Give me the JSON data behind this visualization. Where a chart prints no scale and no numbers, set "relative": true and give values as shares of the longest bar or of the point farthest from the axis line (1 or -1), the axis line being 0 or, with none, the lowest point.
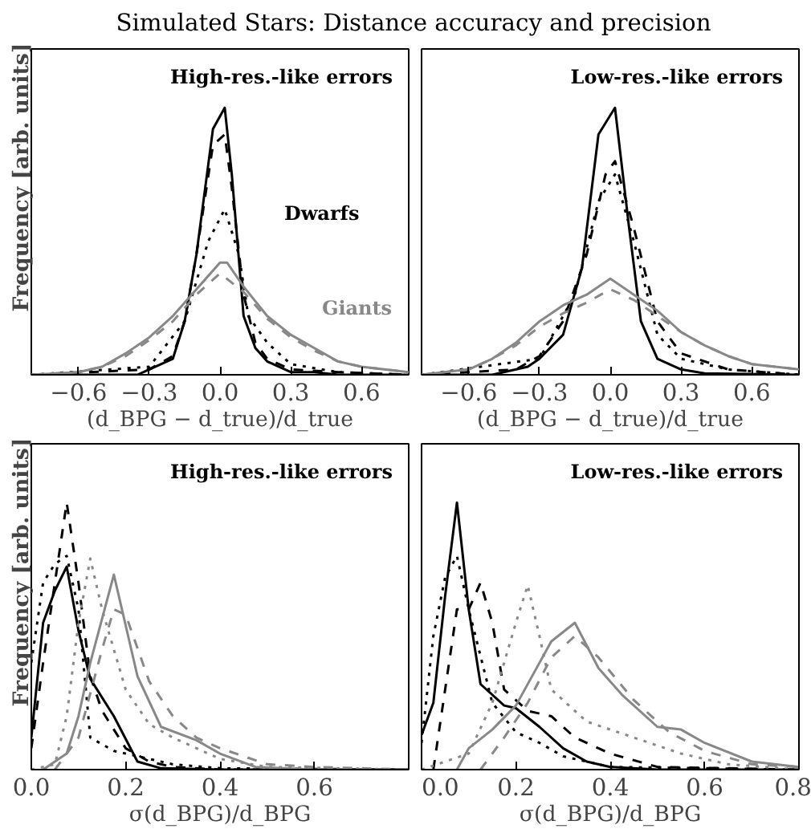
{
  "chart_data": [
    {
      "type": "line",
      "title": "Simulated Stars: Distance accuracy and precision",
      "relative": true,
      "xlabel": "(d_BPG − d_true)/d_true",
      "ylabel": "Frequency [arb. units]",
      "xlim": [
        -0.8,
        0.8
      ],
      "xticks": [
        {
          "value": -0.6,
          "label": "−0.6"
        },
        {
          "value": -0.3,
          "label": "−0.3"
        },
        {
          "value": 0.0,
          "label": "0.0"
        },
        {
          "value": 0.3,
          "label": "0.3"
        },
        {
          "value": 0.6,
          "label": "0.6"
        }
      ],
      "annotations": [
        "High-res.-like errors",
        "Dwarfs",
        "Giants"
      ],
      "series": [
        {
          "color": "#000000",
          "line_style": "solid",
          "x": [
            -0.8,
            -0.35,
            -0.3,
            -0.2,
            -0.15,
            -0.1,
            -0.03,
            0.02,
            0.05,
            0.1,
            0.15,
            0.2,
            0.3,
            0.4,
            0.5,
            0.8
          ],
          "values": [
            0,
            0,
            0.02,
            0.06,
            0.2,
            0.45,
            0.92,
            1.0,
            0.75,
            0.22,
            0.1,
            0.05,
            0.01,
            0.01,
            0,
            0
          ]
        },
        {
          "color": "#000000",
          "line_style": "dashed",
          "x": [
            -0.8,
            -0.3,
            -0.2,
            -0.15,
            -0.1,
            -0.03,
            0.02,
            0.05,
            0.1,
            0.15,
            0.2,
            0.3,
            0.5,
            0.8
          ],
          "values": [
            0,
            0.02,
            0.07,
            0.2,
            0.45,
            0.86,
            0.9,
            0.7,
            0.3,
            0.12,
            0.06,
            0.02,
            0.01,
            0
          ]
        },
        {
          "color": "#000000",
          "line_style": "dotted",
          "x": [
            -0.8,
            -0.3,
            -0.15,
            -0.05,
            0.02,
            0.08,
            0.12,
            0.2,
            0.3,
            0.5,
            0.8
          ],
          "values": [
            0,
            0.03,
            0.2,
            0.5,
            0.62,
            0.45,
            0.22,
            0.12,
            0.04,
            0.01,
            0
          ]
        },
        {
          "color": "#888888",
          "line_style": "solid",
          "x": [
            -0.8,
            -0.6,
            -0.5,
            -0.4,
            -0.3,
            -0.2,
            -0.1,
            0,
            0.03,
            0.1,
            0.2,
            0.3,
            0.4,
            0.5,
            0.6,
            0.8
          ],
          "values": [
            0,
            0.01,
            0.03,
            0.08,
            0.14,
            0.22,
            0.32,
            0.42,
            0.42,
            0.33,
            0.22,
            0.15,
            0.1,
            0.05,
            0.03,
            0.01
          ]
        },
        {
          "color": "#888888",
          "line_style": "dashed",
          "x": [
            -0.8,
            -0.6,
            -0.5,
            -0.4,
            -0.3,
            -0.2,
            -0.1,
            0,
            0.1,
            0.2,
            0.3,
            0.4,
            0.5,
            0.6,
            0.8
          ],
          "values": [
            0,
            0.01,
            0.03,
            0.07,
            0.13,
            0.2,
            0.3,
            0.38,
            0.31,
            0.21,
            0.14,
            0.09,
            0.05,
            0.03,
            0.01
          ]
        }
      ]
    },
    {
      "type": "line",
      "relative": true,
      "xlabel": "(d_BPG − d_true)/d_true",
      "xlim": [
        -0.8,
        0.8
      ],
      "xticks": [
        {
          "value": -0.6,
          "label": "−0.6"
        },
        {
          "value": -0.3,
          "label": "−0.3"
        },
        {
          "value": 0.0,
          "label": "0.0"
        },
        {
          "value": 0.3,
          "label": "0.3"
        },
        {
          "value": 0.6,
          "label": "0.6"
        }
      ],
      "annotations": [
        "Low-res.-like errors"
      ],
      "series": [
        {
          "color": "#000000",
          "line_style": "solid",
          "x": [
            -0.8,
            -0.5,
            -0.35,
            -0.3,
            -0.2,
            -0.12,
            -0.05,
            0.02,
            0.08,
            0.13,
            0.2,
            0.3,
            0.4,
            0.8
          ],
          "values": [
            0,
            0,
            0.03,
            0.06,
            0.15,
            0.4,
            0.9,
            1.0,
            0.55,
            0.2,
            0.06,
            0.02,
            0.005,
            0
          ]
        },
        {
          "color": "#000000",
          "line_style": "dashed",
          "x": [
            -0.8,
            -0.4,
            -0.3,
            -0.2,
            -0.1,
            -0.02,
            0.02,
            0.1,
            0.2,
            0.3,
            0.5,
            0.8
          ],
          "values": [
            0,
            0.02,
            0.07,
            0.2,
            0.45,
            0.75,
            0.8,
            0.55,
            0.2,
            0.08,
            0.02,
            0
          ]
        },
        {
          "color": "#000000",
          "line_style": "dotted",
          "x": [
            -0.8,
            -0.3,
            -0.15,
            -0.05,
            0.02,
            0.1,
            0.2,
            0.3,
            0.5,
            0.8
          ],
          "values": [
            0,
            0.06,
            0.3,
            0.65,
            0.75,
            0.5,
            0.15,
            0.06,
            0.02,
            0
          ]
        },
        {
          "color": "#888888",
          "line_style": "solid",
          "x": [
            -0.8,
            -0.6,
            -0.5,
            -0.4,
            -0.3,
            -0.2,
            -0.1,
            0,
            0.1,
            0.2,
            0.3,
            0.4,
            0.5,
            0.6,
            0.8
          ],
          "values": [
            0,
            0.02,
            0.06,
            0.12,
            0.2,
            0.26,
            0.3,
            0.36,
            0.3,
            0.24,
            0.16,
            0.11,
            0.07,
            0.04,
            0.02
          ]
        },
        {
          "color": "#888888",
          "line_style": "dashed",
          "x": [
            -0.8,
            -0.6,
            -0.5,
            -0.4,
            -0.3,
            -0.2,
            -0.1,
            0,
            0.1,
            0.2,
            0.3,
            0.4,
            0.5,
            0.6,
            0.8
          ],
          "values": [
            0,
            0.02,
            0.06,
            0.11,
            0.18,
            0.23,
            0.27,
            0.32,
            0.28,
            0.22,
            0.16,
            0.11,
            0.07,
            0.04,
            0.02
          ]
        }
      ]
    },
    {
      "type": "line",
      "relative": true,
      "xlabel": "σ(d_BPG)/d_BPG",
      "ylabel": "Frequency [arb. units]",
      "xlim": [
        0,
        0.8
      ],
      "xticks": [
        {
          "value": 0,
          "label": "0.0"
        },
        0.2,
        0.4,
        0.6,
        {
          "value": 0.8,
          "label": null
        }
      ],
      "annotations": [
        "High-res.-like errors"
      ],
      "series": [
        {
          "color": "#000000",
          "line_style": "dashed",
          "x": [
            0,
            0.025,
            0.05,
            0.075,
            0.1,
            0.125,
            0.15,
            0.2,
            0.25,
            0.3,
            0.4,
            0.8
          ],
          "values": [
            0.08,
            0.4,
            0.7,
            1.0,
            0.7,
            0.35,
            0.22,
            0.08,
            0.03,
            0.01,
            0,
            0
          ]
        },
        {
          "color": "#000000",
          "line_style": "solid",
          "x": [
            0,
            0.025,
            0.05,
            0.075,
            0.1,
            0.125,
            0.175,
            0.225,
            0.275,
            0.4,
            0.8
          ],
          "values": [
            0.12,
            0.55,
            0.67,
            0.76,
            0.52,
            0.34,
            0.2,
            0.03,
            0.005,
            0,
            0
          ]
        },
        {
          "color": "#000000",
          "line_style": "dotted",
          "x": [
            0,
            0.025,
            0.05,
            0.075,
            0.1,
            0.125,
            0.175,
            0.225,
            0.3,
            0.4,
            0.8
          ],
          "values": [
            0.4,
            0.7,
            0.77,
            0.8,
            0.6,
            0.12,
            0.07,
            0.05,
            0.02,
            0.005,
            0
          ]
        },
        {
          "color": "#888888",
          "line_style": "dotted",
          "x": [
            0,
            0.05,
            0.075,
            0.1,
            0.125,
            0.15,
            0.2,
            0.25,
            0.3,
            0.4,
            0.5,
            0.8
          ],
          "values": [
            0,
            0.02,
            0.2,
            0.55,
            0.79,
            0.6,
            0.3,
            0.17,
            0.12,
            0.04,
            0.01,
            0
          ]
        },
        {
          "color": "#888888",
          "line_style": "solid",
          "x": [
            0.025,
            0.075,
            0.1,
            0.125,
            0.175,
            0.225,
            0.275,
            0.35,
            0.4,
            0.475,
            0.6,
            0.8
          ],
          "values": [
            0,
            0.06,
            0.2,
            0.4,
            0.73,
            0.35,
            0.16,
            0.11,
            0.06,
            0.01,
            0,
            0
          ]
        },
        {
          "color": "#888888",
          "line_style": "dashed",
          "x": [
            0.05,
            0.1,
            0.15,
            0.175,
            0.2,
            0.25,
            0.3,
            0.35,
            0.4,
            0.5,
            0.6,
            0.8
          ],
          "values": [
            0,
            0.12,
            0.45,
            0.6,
            0.58,
            0.33,
            0.2,
            0.12,
            0.08,
            0.02,
            0.01,
            0
          ]
        }
      ]
    },
    {
      "type": "line",
      "relative": true,
      "xlabel": "σ(d_BPG)/d_BPG",
      "xlim": [
        0,
        0.8
      ],
      "xticks": [
        {
          "value": 0,
          "label": "0.0"
        },
        0.2,
        0.4,
        0.6,
        0.8
      ],
      "annotations": [
        "Low-res.-like errors"
      ],
      "series": [
        {
          "color": "#000000",
          "line_style": "solid",
          "x": [
            0,
            0.025,
            0.05,
            0.075,
            0.1,
            0.125,
            0.175,
            0.2,
            0.25,
            0.3,
            0.35,
            0.4,
            0.5,
            0.8
          ],
          "values": [
            0.13,
            0.25,
            0.65,
            1.0,
            0.6,
            0.32,
            0.24,
            0.23,
            0.16,
            0.08,
            0.03,
            0.01,
            0,
            0
          ]
        },
        {
          "color": "#000000",
          "line_style": "dashed",
          "x": [
            0.025,
            0.05,
            0.075,
            0.1,
            0.125,
            0.15,
            0.175,
            0.225,
            0.275,
            0.325,
            0.4,
            0.5,
            0.8
          ],
          "values": [
            0,
            0.3,
            0.6,
            0.6,
            0.7,
            0.55,
            0.3,
            0.22,
            0.2,
            0.12,
            0.06,
            0.01,
            0
          ]
        },
        {
          "color": "#000000",
          "line_style": "dotted",
          "x": [
            0,
            0.025,
            0.05,
            0.075,
            0.1,
            0.15,
            0.2,
            0.25,
            0.3,
            0.4,
            0.8
          ],
          "values": [
            0.1,
            0.5,
            0.72,
            0.8,
            0.6,
            0.25,
            0.14,
            0.1,
            0.05,
            0.01,
            0
          ]
        },
        {
          "color": "#888888",
          "line_style": "dotted",
          "x": [
            0,
            0.1,
            0.15,
            0.2,
            0.225,
            0.25,
            0.275,
            0.35,
            0.45,
            0.55,
            0.65,
            0.8
          ],
          "values": [
            0,
            0.06,
            0.25,
            0.55,
            0.69,
            0.5,
            0.3,
            0.18,
            0.12,
            0.06,
            0.02,
            0
          ]
        },
        {
          "color": "#888888",
          "line_style": "solid",
          "x": [
            0.075,
            0.1,
            0.15,
            0.2,
            0.25,
            0.275,
            0.325,
            0.375,
            0.425,
            0.5,
            0.55,
            0.6,
            0.7,
            0.8
          ],
          "values": [
            0,
            0.08,
            0.15,
            0.24,
            0.4,
            0.48,
            0.55,
            0.38,
            0.28,
            0.16,
            0.15,
            0.1,
            0.03,
            0.01
          ]
        },
        {
          "color": "#888888",
          "line_style": "dashed",
          "x": [
            0.125,
            0.175,
            0.225,
            0.275,
            0.325,
            0.375,
            0.45,
            0.525,
            0.6,
            0.7,
            0.8
          ],
          "values": [
            0,
            0.12,
            0.25,
            0.42,
            0.5,
            0.42,
            0.26,
            0.14,
            0.07,
            0.02,
            0.01
          ]
        }
      ]
    }
  ]
}
